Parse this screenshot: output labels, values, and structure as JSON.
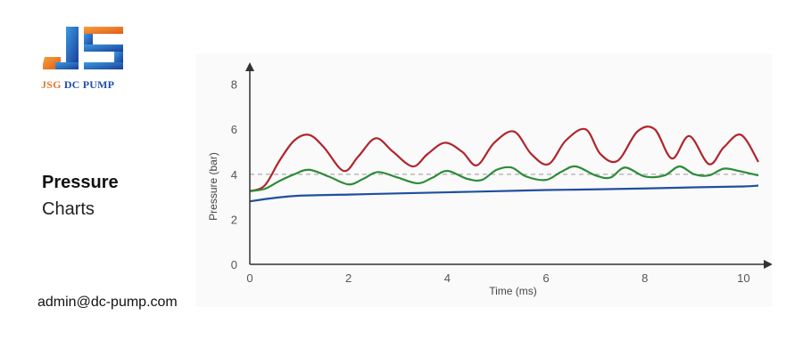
{
  "brand": {
    "logo_name": "JSG DC PUMP logo",
    "logo_text_part1": "JSG",
    "logo_text_part2": "DC PUMP",
    "colors": {
      "orange": "#e8772e",
      "blue": "#1f4fa8"
    }
  },
  "heading": {
    "line1": "Pressure",
    "line2": "Charts"
  },
  "contact": {
    "email": "admin@dc-pump.com"
  },
  "chart_data": {
    "type": "line",
    "title": "",
    "xlabel": "Time (ms)",
    "ylabel": "Pressure (bar)",
    "xlim": [
      0,
      10.3
    ],
    "ylim": [
      0,
      8.5
    ],
    "xticks": [
      0,
      2,
      4,
      6,
      8,
      10
    ],
    "yticks": [
      0,
      2,
      4,
      6,
      8
    ],
    "reference_line": {
      "y": 4.0,
      "style": "dashed",
      "color": "#999999"
    },
    "grid": false,
    "series": [
      {
        "color": "#b0252d",
        "x": [
          0,
          0.3,
          0.6,
          0.9,
          1.2,
          1.5,
          1.9,
          2.2,
          2.55,
          2.9,
          3.3,
          3.6,
          3.95,
          4.3,
          4.6,
          4.95,
          5.35,
          5.7,
          6.05,
          6.4,
          6.8,
          7.1,
          7.45,
          7.85,
          8.2,
          8.55,
          8.9,
          9.3,
          9.6,
          9.95,
          10.3
        ],
        "y": [
          3.25,
          3.5,
          4.6,
          5.5,
          5.75,
          5.2,
          4.15,
          4.8,
          5.6,
          5.0,
          4.35,
          4.9,
          5.4,
          5.0,
          4.4,
          5.4,
          5.9,
          4.9,
          4.45,
          5.5,
          6.0,
          4.9,
          4.6,
          5.9,
          6.0,
          4.7,
          5.7,
          4.45,
          5.2,
          5.75,
          4.55
        ]
      },
      {
        "color": "#2e8b3a",
        "x": [
          0,
          0.3,
          0.6,
          0.9,
          1.2,
          1.6,
          2.0,
          2.3,
          2.6,
          3.0,
          3.4,
          3.7,
          4.0,
          4.4,
          4.7,
          5.0,
          5.3,
          5.6,
          6.0,
          6.3,
          6.6,
          7.0,
          7.3,
          7.6,
          8.0,
          8.4,
          8.7,
          9.0,
          9.3,
          9.6,
          9.9,
          10.3
        ],
        "y": [
          3.25,
          3.35,
          3.7,
          4.0,
          4.2,
          3.9,
          3.55,
          3.8,
          4.1,
          3.85,
          3.6,
          3.85,
          4.15,
          3.8,
          3.75,
          4.2,
          4.3,
          3.9,
          3.75,
          4.1,
          4.35,
          3.95,
          3.85,
          4.3,
          3.9,
          3.95,
          4.35,
          4.0,
          3.95,
          4.25,
          4.15,
          3.95
        ]
      },
      {
        "color": "#1f4fa0",
        "x": [
          0,
          0.5,
          1,
          2,
          3,
          4,
          5,
          6,
          7,
          8,
          9,
          10,
          10.3
        ],
        "y": [
          2.8,
          2.95,
          3.05,
          3.1,
          3.15,
          3.2,
          3.25,
          3.3,
          3.33,
          3.37,
          3.42,
          3.46,
          3.5
        ]
      }
    ]
  }
}
